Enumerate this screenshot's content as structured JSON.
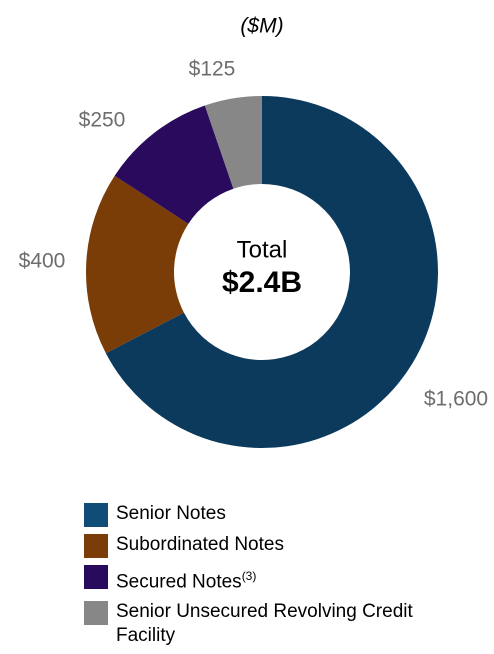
{
  "chart_data": {
    "type": "donut",
    "subtitle": "($M)",
    "center_label": "Total",
    "center_value": "$2.4B",
    "categories": [
      "Senior Notes",
      "Subordinated Notes",
      "Secured Notes",
      "Senior Unsecured Revolving Credit Facility"
    ],
    "superscripts": [
      null,
      null,
      "(3)",
      null
    ],
    "values": [
      1600,
      400,
      250,
      125
    ],
    "value_labels": [
      "$1,600",
      "$400",
      "$250",
      "$125"
    ],
    "colors": [
      "#0b3a5c",
      "#7a3d08",
      "#2a0a5c",
      "#878787"
    ],
    "legend_colors": [
      "#0f4c78",
      "#7a3d08",
      "#2a0a5c",
      "#878787"
    ]
  }
}
